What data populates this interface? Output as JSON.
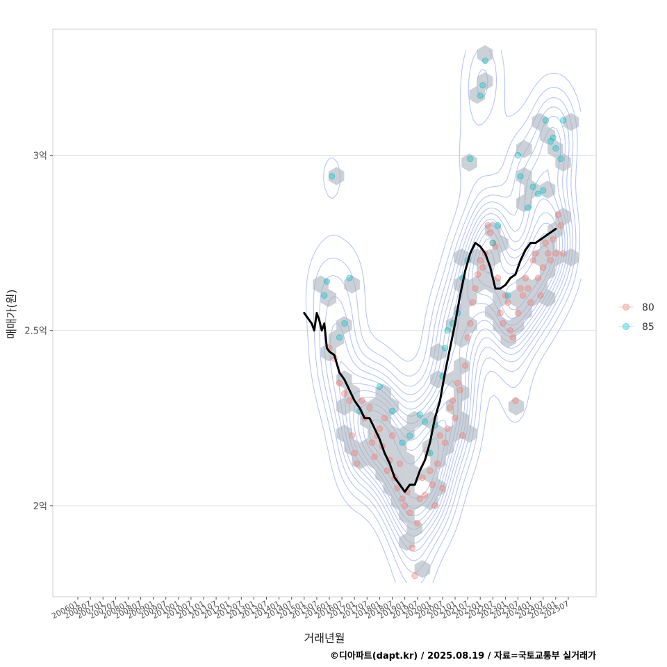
{
  "chart_data": {
    "type": "scatter",
    "xlabel": "거래년월",
    "ylabel": "매매가(원)",
    "caption": "©디아파트(dapt.kr) / 2025.08.19 / 자료=국토교통부 실거래가",
    "ylim": [
      1.74,
      3.36
    ],
    "y_ticks": [
      {
        "value": 2.0,
        "label": "2억"
      },
      {
        "value": 2.5,
        "label": "2.5억"
      },
      {
        "value": 3.0,
        "label": "3억"
      }
    ],
    "x_ticks": [
      "200601",
      "200607",
      "200701",
      "200707",
      "200801",
      "200807",
      "200901",
      "200907",
      "201001",
      "201007",
      "201101",
      "201107",
      "201201",
      "201207",
      "201301",
      "201307",
      "201401",
      "201407",
      "201501",
      "201507",
      "201601",
      "201607",
      "201701",
      "201707",
      "201801",
      "201807",
      "201901",
      "201907",
      "202001",
      "202007",
      "202101",
      "202107",
      "202201",
      "202207",
      "202301",
      "202307",
      "202401",
      "202407",
      "202501",
      "202507"
    ],
    "legend": {
      "position": "right",
      "entries": [
        {
          "label": "80",
          "color": "#f8766d"
        },
        {
          "label": "85",
          "color": "#00bfc4"
        }
      ]
    },
    "series": [
      {
        "name": "80",
        "color": "#f8766d",
        "points": [
          [
            2016.0,
            2.45
          ],
          [
            2016.2,
            2.42
          ],
          [
            2016.4,
            2.35
          ],
          [
            2016.6,
            2.32
          ],
          [
            2016.8,
            2.3
          ],
          [
            2016.9,
            2.2
          ],
          [
            2017.0,
            2.15
          ],
          [
            2017.1,
            2.12
          ],
          [
            2017.3,
            2.3
          ],
          [
            2017.4,
            2.25
          ],
          [
            2017.6,
            2.28
          ],
          [
            2017.7,
            2.18
          ],
          [
            2017.8,
            2.14
          ],
          [
            2017.9,
            2.2
          ],
          [
            2018.0,
            2.22
          ],
          [
            2018.1,
            2.17
          ],
          [
            2018.2,
            2.25
          ],
          [
            2018.3,
            2.1
          ],
          [
            2018.4,
            2.13
          ],
          [
            2018.5,
            2.2
          ],
          [
            2018.6,
            2.08
          ],
          [
            2018.7,
            2.05
          ],
          [
            2018.8,
            2.12
          ],
          [
            2018.9,
            2.02
          ],
          [
            2019.0,
            2.0
          ],
          [
            2019.1,
            2.04
          ],
          [
            2019.2,
            1.98
          ],
          [
            2019.3,
            1.88
          ],
          [
            2019.4,
            1.8
          ],
          [
            2019.5,
            1.95
          ],
          [
            2019.6,
            2.02
          ],
          [
            2019.7,
            2.08
          ],
          [
            2019.8,
            2.03
          ],
          [
            2019.9,
            2.15
          ],
          [
            2020.0,
            2.1
          ],
          [
            2020.1,
            2.06
          ],
          [
            2020.2,
            2.0
          ],
          [
            2020.3,
            2.12
          ],
          [
            2020.4,
            2.2
          ],
          [
            2020.5,
            2.05
          ],
          [
            2020.6,
            2.18
          ],
          [
            2020.7,
            2.22
          ],
          [
            2020.8,
            2.28
          ],
          [
            2020.9,
            2.3
          ],
          [
            2021.0,
            2.25
          ],
          [
            2021.1,
            2.35
          ],
          [
            2021.2,
            2.33
          ],
          [
            2021.3,
            2.2
          ],
          [
            2021.4,
            2.4
          ],
          [
            2021.5,
            2.48
          ],
          [
            2021.6,
            2.52
          ],
          [
            2021.7,
            2.58
          ],
          [
            2021.8,
            2.62
          ],
          [
            2021.9,
            2.66
          ],
          [
            2022.0,
            2.7
          ],
          [
            2022.1,
            2.68
          ],
          [
            2022.2,
            2.72
          ],
          [
            2022.3,
            2.8
          ],
          [
            2022.4,
            2.78
          ],
          [
            2022.5,
            2.75
          ],
          [
            2022.6,
            2.74
          ],
          [
            2022.7,
            2.65
          ],
          [
            2022.8,
            2.55
          ],
          [
            2022.9,
            2.52
          ],
          [
            2023.0,
            2.6
          ],
          [
            2023.1,
            2.58
          ],
          [
            2023.2,
            2.5
          ],
          [
            2023.3,
            2.48
          ],
          [
            2023.4,
            2.3
          ],
          [
            2023.5,
            2.55
          ],
          [
            2023.6,
            2.62
          ],
          [
            2023.7,
            2.6
          ],
          [
            2023.8,
            2.65
          ],
          [
            2023.9,
            2.62
          ],
          [
            2024.0,
            2.58
          ],
          [
            2024.1,
            2.7
          ],
          [
            2024.2,
            2.72
          ],
          [
            2024.3,
            2.65
          ],
          [
            2024.4,
            2.6
          ],
          [
            2024.5,
            2.68
          ],
          [
            2024.6,
            2.75
          ],
          [
            2024.7,
            2.72
          ],
          [
            2024.8,
            2.7
          ],
          [
            2024.9,
            2.76
          ],
          [
            2025.0,
            2.72
          ],
          [
            2025.1,
            2.83
          ],
          [
            2025.2,
            2.8
          ],
          [
            2025.3,
            2.72
          ]
        ]
      },
      {
        "name": "85",
        "color": "#00bfc4",
        "points": [
          [
            2015.8,
            2.6
          ],
          [
            2015.9,
            2.64
          ],
          [
            2016.1,
            2.94
          ],
          [
            2016.4,
            2.48
          ],
          [
            2016.6,
            2.52
          ],
          [
            2016.8,
            2.65
          ],
          [
            2017.2,
            2.27
          ],
          [
            2018.0,
            2.34
          ],
          [
            2018.5,
            2.27
          ],
          [
            2018.9,
            2.18
          ],
          [
            2019.2,
            2.2
          ],
          [
            2019.6,
            2.26
          ],
          [
            2019.8,
            2.24
          ],
          [
            2020.0,
            2.15
          ],
          [
            2020.2,
            2.23
          ],
          [
            2020.5,
            2.37
          ],
          [
            2020.6,
            2.45
          ],
          [
            2020.7,
            2.5
          ],
          [
            2020.9,
            2.52
          ],
          [
            2021.1,
            2.55
          ],
          [
            2021.3,
            2.65
          ],
          [
            2021.5,
            2.7
          ],
          [
            2021.6,
            2.99
          ],
          [
            2022.0,
            3.17
          ],
          [
            2022.1,
            3.2
          ],
          [
            2022.2,
            3.27
          ],
          [
            2022.5,
            2.75
          ],
          [
            2022.7,
            2.8
          ],
          [
            2023.1,
            2.6
          ],
          [
            2023.5,
            3.0
          ],
          [
            2023.6,
            2.94
          ],
          [
            2023.9,
            2.85
          ],
          [
            2024.1,
            2.91
          ],
          [
            2024.3,
            2.89
          ],
          [
            2024.5,
            2.9
          ],
          [
            2024.6,
            3.1
          ],
          [
            2024.8,
            3.04
          ],
          [
            2024.9,
            3.05
          ],
          [
            2025.0,
            3.02
          ],
          [
            2025.2,
            2.99
          ],
          [
            2025.3,
            3.1
          ]
        ]
      }
    ],
    "trend_line": {
      "name": "moving average",
      "color": "#000000",
      "points": [
        [
          2015.0,
          2.55
        ],
        [
          2015.1,
          2.54
        ],
        [
          2015.2,
          2.53
        ],
        [
          2015.3,
          2.52
        ],
        [
          2015.4,
          2.5
        ],
        [
          2015.5,
          2.55
        ],
        [
          2015.6,
          2.53
        ],
        [
          2015.7,
          2.5
        ],
        [
          2015.8,
          2.52
        ],
        [
          2015.9,
          2.45
        ],
        [
          2016.0,
          2.44
        ],
        [
          2016.2,
          2.43
        ],
        [
          2016.4,
          2.38
        ],
        [
          2016.6,
          2.36
        ],
        [
          2016.8,
          2.33
        ],
        [
          2017.0,
          2.3
        ],
        [
          2017.2,
          2.28
        ],
        [
          2017.4,
          2.25
        ],
        [
          2017.6,
          2.25
        ],
        [
          2017.8,
          2.22
        ],
        [
          2018.0,
          2.19
        ],
        [
          2018.2,
          2.15
        ],
        [
          2018.4,
          2.12
        ],
        [
          2018.6,
          2.08
        ],
        [
          2018.8,
          2.06
        ],
        [
          2019.0,
          2.04
        ],
        [
          2019.2,
          2.06
        ],
        [
          2019.4,
          2.06
        ],
        [
          2019.6,
          2.1
        ],
        [
          2019.8,
          2.13
        ],
        [
          2020.0,
          2.18
        ],
        [
          2020.2,
          2.25
        ],
        [
          2020.4,
          2.3
        ],
        [
          2020.6,
          2.38
        ],
        [
          2020.8,
          2.45
        ],
        [
          2021.0,
          2.52
        ],
        [
          2021.2,
          2.6
        ],
        [
          2021.4,
          2.67
        ],
        [
          2021.6,
          2.72
        ],
        [
          2021.8,
          2.75
        ],
        [
          2022.0,
          2.74
        ],
        [
          2022.2,
          2.72
        ],
        [
          2022.4,
          2.68
        ],
        [
          2022.6,
          2.62
        ],
        [
          2022.8,
          2.62
        ],
        [
          2023.0,
          2.63
        ],
        [
          2023.2,
          2.65
        ],
        [
          2023.4,
          2.66
        ],
        [
          2023.6,
          2.7
        ],
        [
          2023.8,
          2.73
        ],
        [
          2024.0,
          2.75
        ],
        [
          2024.2,
          2.75
        ],
        [
          2024.4,
          2.76
        ],
        [
          2024.6,
          2.77
        ],
        [
          2024.8,
          2.78
        ],
        [
          2025.0,
          2.79
        ]
      ]
    }
  }
}
